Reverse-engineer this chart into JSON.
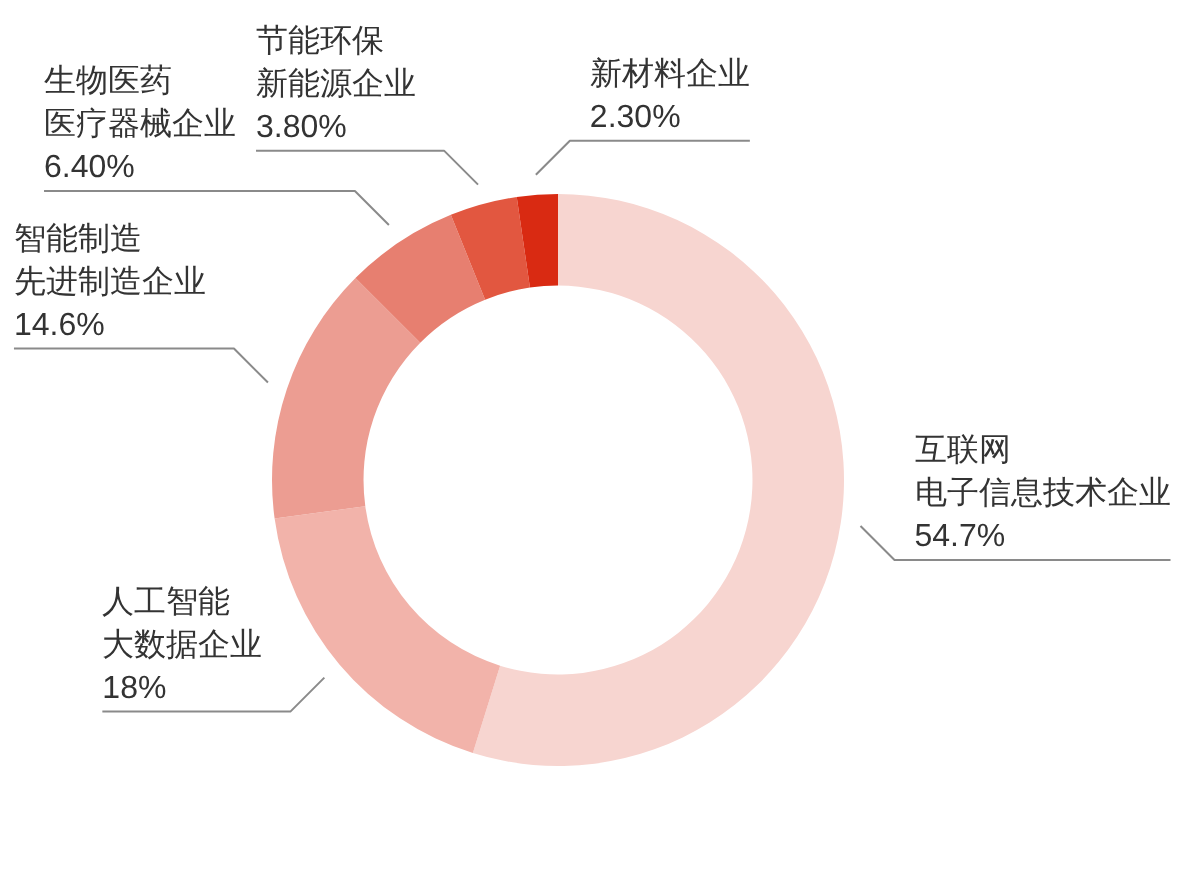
{
  "chart_data": {
    "type": "donut",
    "categories": [
      "互联网电子信息技术企业",
      "人工智能大数据企业",
      "智能制造先进制造企业",
      "生物医药医疗器械企业",
      "节能环保新能源企业",
      "新材料企业"
    ],
    "values": [
      54.7,
      18,
      14.6,
      6.4,
      3.8,
      2.3
    ],
    "colors": [
      "#f7d5d0",
      "#f2b3aa",
      "#ec9d92",
      "#e77f70",
      "#e25740",
      "#d92a12"
    ],
    "value_labels": [
      "54.7%",
      "18%",
      "14.6%",
      "6.40%",
      "3.80%",
      "2.30%"
    ]
  }
}
